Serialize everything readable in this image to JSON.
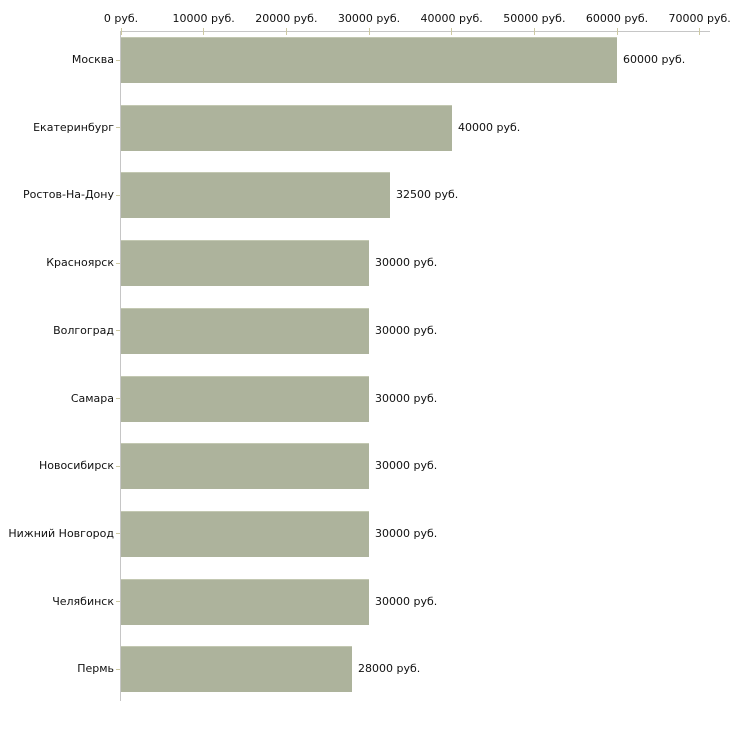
{
  "chart_data": {
    "type": "bar",
    "orientation": "horizontal",
    "title": "",
    "xlabel": "",
    "ylabel": "",
    "categories": [
      "Москва",
      "Екатеринбург",
      "Ростов-На-Дону",
      "Красноярск",
      "Волгоград",
      "Самара",
      "Новосибирск",
      "Нижний Новгород",
      "Челябинск",
      "Пермь"
    ],
    "values": [
      60000,
      40000,
      32500,
      30000,
      30000,
      30000,
      30000,
      30000,
      30000,
      28000
    ],
    "value_labels": [
      "60000 руб.",
      "40000 руб.",
      "32500 руб.",
      "30000 руб.",
      "30000 руб.",
      "30000 руб.",
      "30000 руб.",
      "30000 руб.",
      "30000 руб.",
      "28000 руб."
    ],
    "x_ticks": [
      0,
      10000,
      20000,
      30000,
      40000,
      50000,
      60000,
      70000
    ],
    "x_tick_labels": [
      "0 руб.",
      "10000 руб.",
      "20000 руб.",
      "30000 руб.",
      "40000 руб.",
      "50000 руб.",
      "60000 руб.",
      "70000 руб."
    ],
    "xlim": [
      0,
      70000
    ],
    "grid": false,
    "legend": false,
    "colors": {
      "bar_fill": "#adb39c",
      "bar_highlight": "#c3c8b2",
      "axis_line": "#c6c6c6",
      "tick_mark": "#cdc9a2",
      "text": "#111111",
      "background": "#ffffff"
    }
  }
}
